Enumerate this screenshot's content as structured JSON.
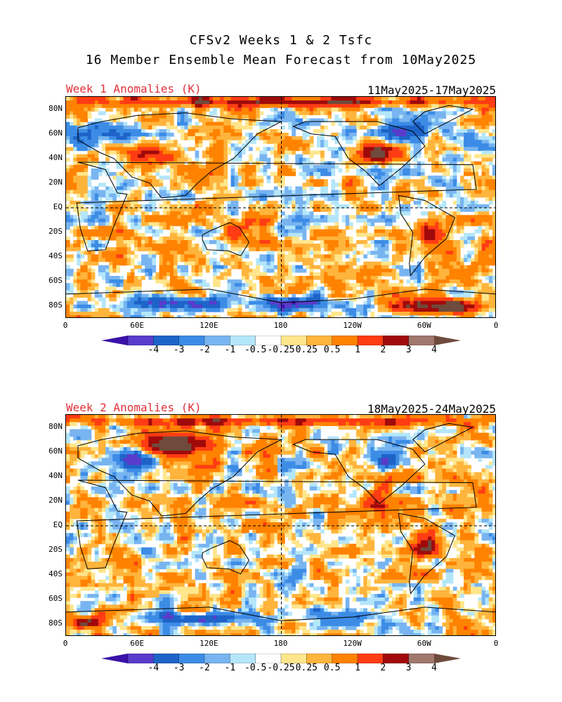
{
  "header": {
    "title_line1": "CFSv2 Weeks 1 & 2 Tsfc",
    "title_line2": "16 Member Ensemble Mean Forecast from 10May2025"
  },
  "panels": [
    {
      "label": "Week 1 Anomalies (K)",
      "dates": "11May2025-17May2025"
    },
    {
      "label": "Week 2 Anomalies (K)",
      "dates": "18May2025-24May2025"
    }
  ],
  "lat_labels": [
    "80N",
    "60N",
    "40N",
    "20N",
    "EQ",
    "20S",
    "40S",
    "60S",
    "80S"
  ],
  "lon_labels": [
    "0",
    "60E",
    "120E",
    "180",
    "120W",
    "60W",
    "0"
  ],
  "colorbar": {
    "labels": [
      "-4",
      "-3",
      "-2",
      "-1",
      "-0.5",
      "-0.25",
      "0.25",
      "0.5",
      "1",
      "2",
      "3",
      "4"
    ],
    "colors": [
      "#3a12a8",
      "#5a3ccc",
      "#1e64c8",
      "#3c8ce6",
      "#78b4f0",
      "#b4e6fa",
      "#ffffff",
      "#ffe68c",
      "#ffb43c",
      "#ff8200",
      "#ff3c14",
      "#a00a0a",
      "#a0786e",
      "#6e4b3c"
    ]
  }
}
